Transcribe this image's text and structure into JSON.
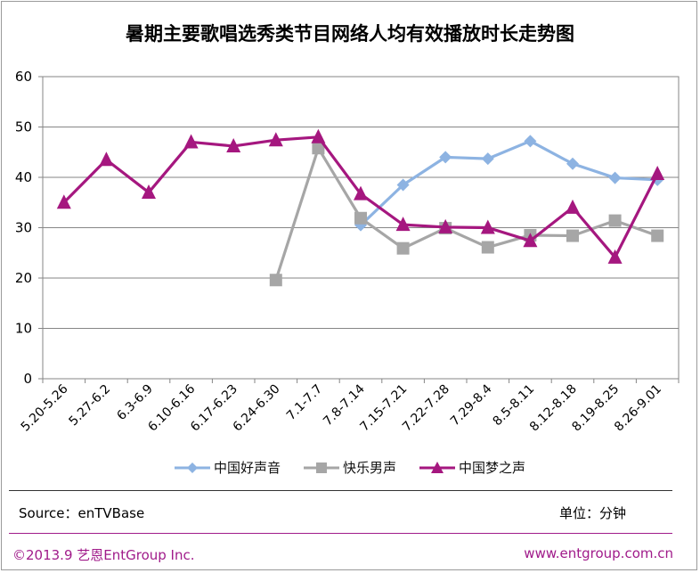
{
  "chart_data": {
    "type": "line",
    "title": "暑期主要歌唱选秀类节目网络人均有效播放时长走势图",
    "categories": [
      "5.20-5.26",
      "5.27-6.2",
      "6.3-6.9",
      "6.10-6.16",
      "6.17-6.23",
      "6.24-6.30",
      "7.1-7.7",
      "7.8-7.14",
      "7.15-7.21",
      "7.22-7.28",
      "7.29-8.4",
      "8.5-8.11",
      "8.12-8.18",
      "8.19-8.25",
      "8.26-9.01"
    ],
    "ylim": [
      0,
      60
    ],
    "yticks": [
      0,
      10,
      20,
      30,
      40,
      50,
      60
    ],
    "grid": true,
    "legend_position": "bottom",
    "series": [
      {
        "name": "中国好声音",
        "color": "#8db3e2",
        "marker": "diamond",
        "values": [
          null,
          null,
          null,
          null,
          null,
          null,
          null,
          30.5,
          38.5,
          44,
          43.7,
          47.2,
          42.7,
          39.9,
          39.5
        ]
      },
      {
        "name": "快乐男声",
        "color": "#a6a6a6",
        "marker": "square",
        "values": [
          null,
          null,
          null,
          null,
          null,
          19.6,
          45.8,
          31.9,
          25.9,
          29.9,
          26.1,
          28.5,
          28.4,
          31.4,
          28.4
        ]
      },
      {
        "name": "中国梦之声",
        "color": "#a5177f",
        "marker": "triangle",
        "values": [
          35,
          43.5,
          37,
          47,
          46.2,
          47.4,
          48,
          36.7,
          30.6,
          30.1,
          30,
          27.4,
          34,
          24.1,
          40.7
        ]
      }
    ]
  },
  "footer": {
    "source": "Source：enTVBase",
    "unit": "单位：分钟",
    "copyright": "©2013.9  艺恩EntGroup Inc.",
    "website": "www.entgroup.com.cn"
  }
}
